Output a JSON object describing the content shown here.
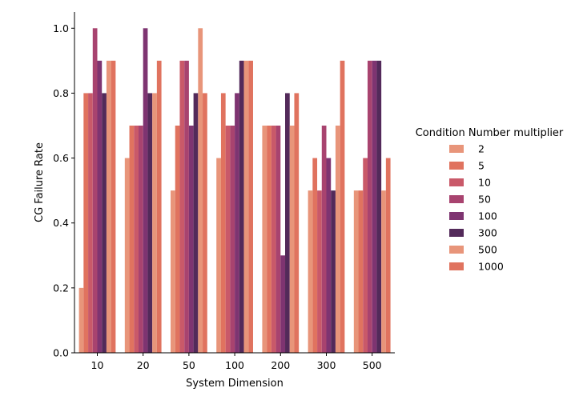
{
  "chart_data": {
    "type": "bar",
    "xlabel": "System Dimension",
    "ylabel": "CG Failure Rate",
    "ylim": [
      0,
      1.05
    ],
    "yticks": [
      "0.0",
      "0.2",
      "0.4",
      "0.6",
      "0.8",
      "1.0"
    ],
    "categories": [
      "10",
      "20",
      "50",
      "100",
      "200",
      "300",
      "500"
    ],
    "legend_title": "Condition Number multiplier",
    "legend_position": "right",
    "grid": false,
    "series": [
      {
        "name": "2",
        "color": "#e8957a",
        "values": [
          0.2,
          0.6,
          0.5,
          0.6,
          0.7,
          0.5,
          0.5
        ]
      },
      {
        "name": "5",
        "color": "#e0735f",
        "values": [
          0.8,
          0.7,
          0.7,
          0.8,
          0.7,
          0.6,
          0.5
        ]
      },
      {
        "name": "10",
        "color": "#c95969",
        "values": [
          0.8,
          0.7,
          0.9,
          0.7,
          0.7,
          0.5,
          0.6
        ]
      },
      {
        "name": "50",
        "color": "#a8436f",
        "values": [
          1.0,
          0.7,
          0.9,
          0.7,
          0.7,
          0.7,
          0.9
        ]
      },
      {
        "name": "100",
        "color": "#7e3471",
        "values": [
          0.9,
          1.0,
          0.7,
          0.8,
          0.3,
          0.6,
          0.9
        ]
      },
      {
        "name": "300",
        "color": "#532a5a",
        "values": [
          0.8,
          0.8,
          0.8,
          0.9,
          0.8,
          0.5,
          0.9
        ]
      },
      {
        "name": "500",
        "color": "#e8957a",
        "values": [
          0.9,
          0.8,
          1.0,
          0.9,
          0.7,
          0.7,
          0.5
        ]
      },
      {
        "name": "1000",
        "color": "#e0735f",
        "values": [
          0.9,
          0.9,
          0.8,
          0.9,
          0.8,
          0.9,
          0.6
        ]
      }
    ]
  }
}
